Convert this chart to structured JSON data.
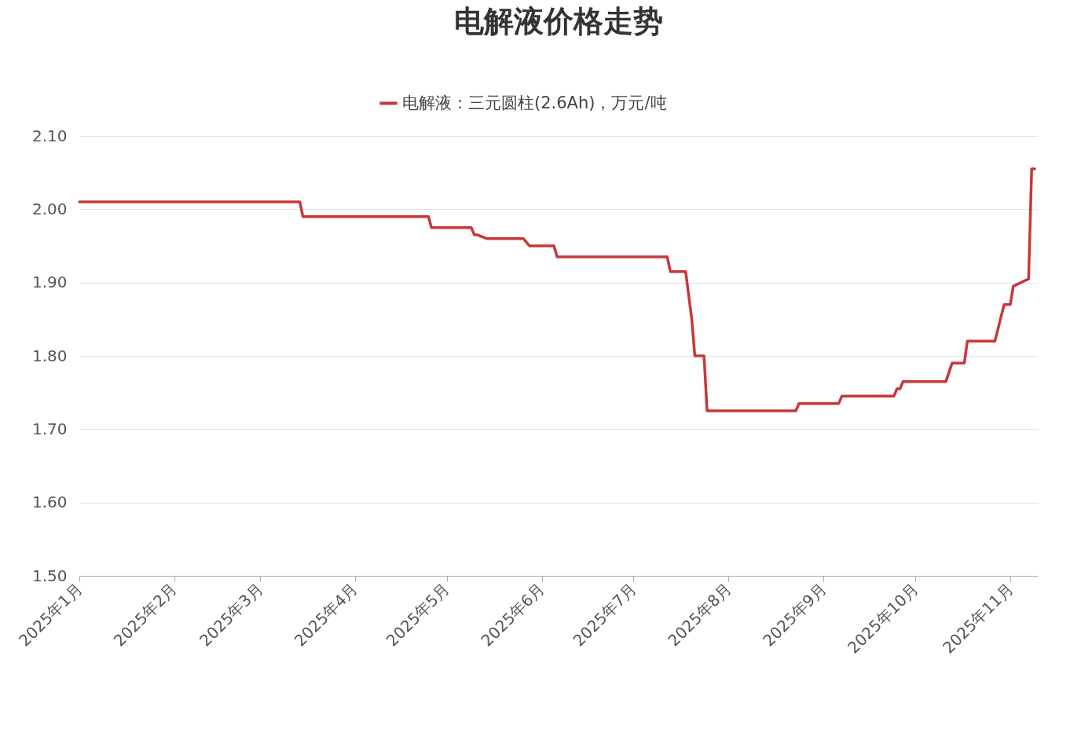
{
  "chart_data": {
    "type": "line",
    "title": "电解液价格走势",
    "legend": "top",
    "grid": "y",
    "line_style": "solid",
    "marker": "none",
    "xlim": [
      "2025-01-01",
      "2025-11-10"
    ],
    "xticks": [
      {
        "value": "2025-01-01",
        "label": "2025年1月"
      },
      {
        "value": "2025-02-01",
        "label": "2025年2月"
      },
      {
        "value": "2025-03-01",
        "label": "2025年3月"
      },
      {
        "value": "2025-04-01",
        "label": "2025年4月"
      },
      {
        "value": "2025-05-01",
        "label": "2025年5月"
      },
      {
        "value": "2025-06-01",
        "label": "2025年6月"
      },
      {
        "value": "2025-07-01",
        "label": "2025年7月"
      },
      {
        "value": "2025-08-01",
        "label": "2025年8月"
      },
      {
        "value": "2025-09-01",
        "label": "2025年9月"
      },
      {
        "value": "2025-10-01",
        "label": "2025年10月"
      },
      {
        "value": "2025-11-01",
        "label": "2025年11月"
      }
    ],
    "ylim": [
      1.5,
      2.1
    ],
    "yticks": [
      {
        "value": 1.5,
        "label": "1.50"
      },
      {
        "value": 1.6,
        "label": "1.60"
      },
      {
        "value": 1.7,
        "label": "1.70"
      },
      {
        "value": 1.8,
        "label": "1.80"
      },
      {
        "value": 1.9,
        "label": "1.90"
      },
      {
        "value": 2.0,
        "label": "2.00"
      },
      {
        "value": 2.1,
        "label": "2.10"
      }
    ],
    "x": [
      "2025-01-01",
      "2025-03-14",
      "2025-03-15",
      "2025-04-25",
      "2025-04-26",
      "2025-05-09",
      "2025-05-10",
      "2025-05-11",
      "2025-05-14",
      "2025-05-26",
      "2025-05-28",
      "2025-06-05",
      "2025-06-06",
      "2025-07-12",
      "2025-07-13",
      "2025-07-18",
      "2025-07-20",
      "2025-07-21",
      "2025-07-24",
      "2025-07-25",
      "2025-08-23",
      "2025-08-24",
      "2025-09-06",
      "2025-09-07",
      "2025-09-24",
      "2025-09-25",
      "2025-09-26",
      "2025-09-27",
      "2025-10-11",
      "2025-10-13",
      "2025-10-17",
      "2025-10-18",
      "2025-10-27",
      "2025-10-30",
      "2025-11-01",
      "2025-11-02",
      "2025-11-07",
      "2025-11-08",
      "2025-11-09"
    ],
    "series": [
      {
        "name": "电解液：三元圆柱(2.6Ah)，万元/吨",
        "color": "#c8373a",
        "values": [
          2.01,
          2.01,
          1.99,
          1.99,
          1.975,
          1.975,
          1.965,
          1.965,
          1.96,
          1.96,
          1.95,
          1.95,
          1.935,
          1.935,
          1.915,
          1.915,
          1.85,
          1.8,
          1.8,
          1.725,
          1.725,
          1.735,
          1.735,
          1.745,
          1.745,
          1.755,
          1.755,
          1.765,
          1.765,
          1.79,
          1.79,
          1.82,
          1.82,
          1.87,
          1.87,
          1.895,
          1.905,
          2.055,
          2.055
        ]
      }
    ]
  }
}
